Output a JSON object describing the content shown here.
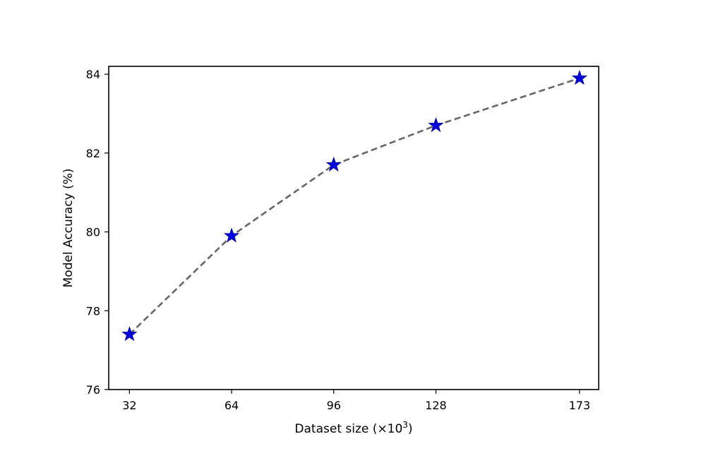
{
  "chart_data": {
    "type": "line",
    "xlabel": "Dataset size (×10",
    "xlabel_sup": "3",
    "xlabel_end": ")",
    "ylabel": "Model Accuracy (%)",
    "x_tick_labels": [
      "32",
      "64",
      "96",
      "128",
      "173"
    ],
    "x": [
      32,
      64,
      96,
      128,
      173
    ],
    "xlim": [
      25.5,
      179
    ],
    "ylim": [
      76,
      84.2
    ],
    "y_ticks": [
      76,
      78,
      80,
      82,
      84
    ],
    "y_tick_labels": [
      "76",
      "78",
      "80",
      "82",
      "84"
    ],
    "series": [
      {
        "values": [
          77.4,
          79.9,
          81.7,
          82.7,
          83.9
        ],
        "line_color": "#666666",
        "line_style": "dashed",
        "marker": "star",
        "marker_color": "#0000dd"
      }
    ],
    "grid": false,
    "legend": "none"
  }
}
